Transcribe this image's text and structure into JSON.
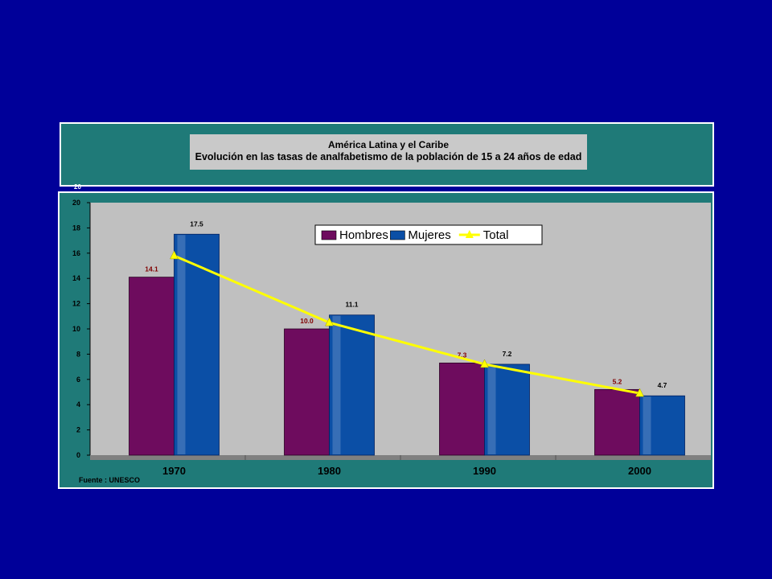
{
  "title": {
    "line1": "América Latina y el Caribe",
    "line2": "Evolución en las tasas de analfabetismo de la población de 15 a 24 años de edad"
  },
  "stub_tick": "20",
  "source": "Fuente : UNESCO",
  "colors": {
    "background": "#000099",
    "panel": "#1f7a78",
    "plot_area": "#c0c0c0",
    "hombres": "#6e0c5e",
    "mujeres": "#0b4fa6",
    "total": "#ffff00"
  },
  "chart_data": {
    "type": "bar",
    "title": "América Latina y el Caribe - Evolución en las tasas de analfabetismo de la población de 15 a 24 años de edad",
    "categories": [
      "1970",
      "1980",
      "1990",
      "2000"
    ],
    "series": [
      {
        "name": "Hombres",
        "type": "bar",
        "values": [
          14.1,
          10.0,
          7.3,
          5.2
        ],
        "labels": [
          "14.1",
          "10.0",
          "7.3",
          "5.2"
        ]
      },
      {
        "name": "Mujeres",
        "type": "bar",
        "values": [
          17.5,
          11.1,
          7.2,
          4.7
        ],
        "labels": [
          "17.5",
          "11.1",
          "7.2",
          "4.7"
        ]
      },
      {
        "name": "Total",
        "type": "line",
        "values": [
          15.8,
          10.5,
          7.2,
          4.9
        ]
      }
    ],
    "ylim": [
      0,
      20
    ],
    "yticks": [
      "0",
      "2",
      "4",
      "6",
      "8",
      "10",
      "12",
      "14",
      "16",
      "18",
      "20"
    ],
    "xlabel": "",
    "ylabel": "",
    "legend": "top-center",
    "grid": false
  }
}
